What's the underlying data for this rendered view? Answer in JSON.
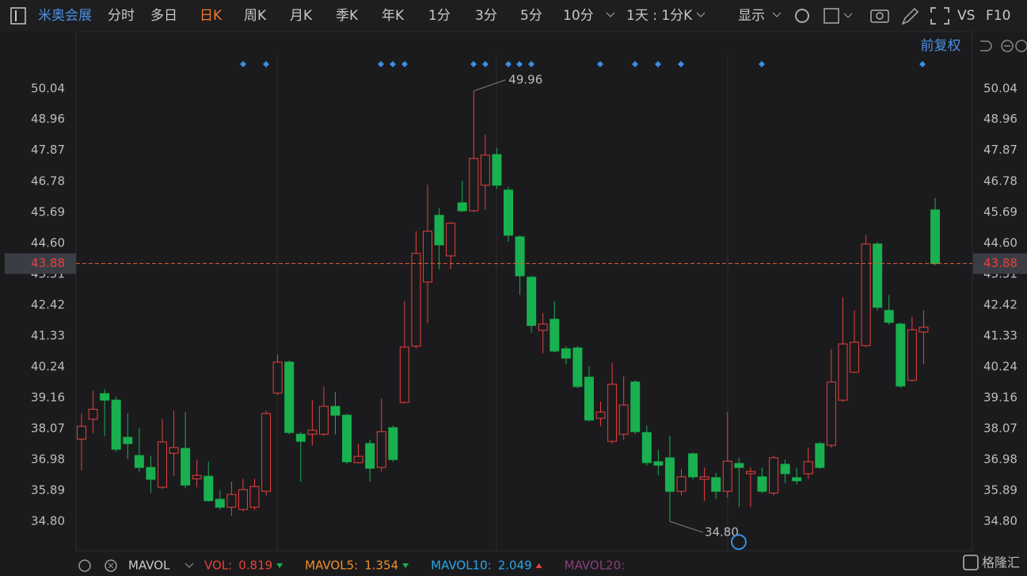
{
  "toolbar": {
    "stock": "米奥会展",
    "periods": [
      "分时",
      "多日",
      "日K",
      "周K",
      "月K",
      "季K",
      "年K",
      "1分",
      "3分",
      "5分",
      "10分"
    ],
    "active": "日K",
    "range": "1天 : 1分K",
    "display": "显示",
    "vs": "VS",
    "f10": "F10"
  },
  "chart_data": {
    "type": "candlestick",
    "adjust": "前复权",
    "ylim": [
      33.77,
      51.21
    ],
    "yticks": [
      {
        "value": 50.04,
        "label": "50.04"
      },
      {
        "value": 48.96,
        "label": "48.96"
      },
      {
        "value": 47.87,
        "label": "47.87"
      },
      {
        "value": 46.78,
        "label": "46.78"
      },
      {
        "value": 45.69,
        "label": "45.69"
      },
      {
        "value": 44.6,
        "label": "44.60"
      },
      {
        "value": 43.51,
        "label": "43.51"
      },
      {
        "value": 42.42,
        "label": "42.42"
      },
      {
        "value": 41.33,
        "label": "41.33"
      },
      {
        "value": 40.24,
        "label": "40.24"
      },
      {
        "value": 39.16,
        "label": "39.16"
      },
      {
        "value": 38.07,
        "label": "38.07"
      },
      {
        "value": 36.98,
        "label": "36.98"
      },
      {
        "value": 35.89,
        "label": "35.89"
      },
      {
        "value": 34.8,
        "label": "34.80"
      }
    ],
    "up_color": "#e8413c",
    "down_color": "#19b04f",
    "open": [
      37.7,
      38.4,
      39.3,
      39.07,
      37.76,
      37.12,
      36.7,
      36.0,
      37.2,
      37.37,
      36.3,
      36.39,
      35.58,
      35.3,
      35.22,
      35.3,
      35.86,
      39.32,
      40.41,
      37.87,
      37.87,
      37.87,
      38.85,
      38.54,
      36.87,
      37.54,
      36.7,
      38.1,
      38.99,
      40.97,
      43.23,
      45.58,
      44.15,
      46.02,
      45.74,
      46.64,
      47.72,
      46.47,
      44.82,
      43.4,
      41.53,
      41.92,
      40.88,
      40.91,
      39.88,
      38.43,
      37.62,
      37.87,
      39.71,
      37.93,
      36.9,
      37.04,
      35.86,
      37.18,
      36.28,
      36.34,
      35.86,
      36.84,
      36.48,
      36.37,
      35.8,
      36.81,
      36.34,
      36.48,
      37.54,
      37.48,
      39.07,
      40.05,
      40.99,
      44.57,
      42.23,
      41.75,
      39.77,
      41.47,
      45.77
    ],
    "high": [
      38.6,
      39.4,
      39.45,
      39.2,
      38.6,
      38.1,
      37.12,
      38.4,
      38.7,
      38.65,
      36.98,
      36.9,
      35.9,
      36.2,
      36.3,
      36.3,
      38.7,
      40.68,
      40.47,
      37.95,
      39.07,
      39.55,
      39.35,
      38.6,
      37.54,
      37.68,
      39.13,
      38.18,
      42.56,
      45.02,
      46.66,
      45.85,
      45.35,
      46.8,
      49.96,
      48.42,
      47.95,
      46.58,
      44.88,
      43.45,
      42.14,
      42.56,
      40.97,
      40.97,
      40.27,
      39.02,
      40.38,
      39.91,
      39.77,
      38.18,
      37.32,
      37.82,
      36.64,
      37.23,
      36.7,
      36.5,
      38.65,
      37.04,
      36.7,
      36.7,
      37.12,
      36.98,
      36.7,
      37.4,
      37.6,
      40.88,
      42.7,
      42.23,
      44.88,
      44.65,
      42.78,
      41.81,
      42.0,
      42.23,
      46.19
    ],
    "low": [
      36.6,
      37.9,
      37.8,
      37.25,
      37.0,
      36.55,
      35.8,
      35.94,
      36.4,
      35.98,
      36.0,
      35.5,
      35.22,
      35.0,
      35.16,
      35.2,
      35.72,
      39.26,
      37.87,
      36.2,
      37.48,
      37.81,
      37.87,
      36.84,
      36.84,
      36.2,
      36.56,
      36.9,
      38.96,
      40.89,
      41.78,
      43.68,
      43.68,
      45.69,
      45.69,
      45.77,
      46.52,
      44.65,
      42.78,
      41.44,
      40.72,
      40.75,
      40.33,
      39.49,
      38.32,
      38.15,
      37.54,
      37.68,
      37.87,
      36.76,
      36.42,
      34.8,
      35.72,
      36.28,
      35.53,
      35.58,
      35.64,
      35.3,
      35.3,
      35.8,
      35.72,
      36.14,
      36.09,
      36.3,
      36.65,
      37.4,
      39.02,
      40.02,
      40.94,
      42.23,
      41.72,
      39.49,
      39.71,
      40.33,
      43.82
    ],
    "close": [
      38.15,
      38.75,
      39.07,
      37.34,
      37.54,
      36.7,
      36.28,
      37.6,
      37.4,
      36.08,
      36.42,
      35.53,
      35.3,
      35.75,
      35.92,
      36.03,
      38.6,
      40.41,
      37.93,
      37.62,
      38.01,
      38.85,
      38.54,
      36.9,
      37.09,
      36.67,
      37.96,
      36.98,
      40.94,
      44.24,
      45.02,
      44.54,
      45.3,
      45.74,
      47.58,
      47.7,
      46.64,
      44.88,
      43.45,
      41.7,
      41.75,
      40.8,
      40.55,
      39.55,
      38.37,
      38.65,
      39.63,
      38.9,
      37.96,
      36.87,
      36.78,
      35.86,
      36.37,
      36.37,
      36.37,
      35.86,
      36.92,
      36.7,
      36.56,
      35.86,
      37.04,
      36.48,
      36.23,
      36.9,
      36.7,
      39.71,
      41.05,
      41.11,
      44.57,
      42.34,
      41.81,
      39.57,
      41.55,
      41.64,
      43.88
    ],
    "last_price": 43.88,
    "annotations": [
      {
        "value": 49.96
      },
      {
        "value": 34.8,
        "label": "34.80"
      }
    ]
  },
  "indicator": {
    "name": "MAVOL",
    "items": [
      {
        "label": "VOL:",
        "value": 0.819,
        "color": "#e8413c"
      },
      {
        "label": "MAVOL5:",
        "value": 1.354,
        "color": "#f0902a"
      },
      {
        "label": "MAVOL10:",
        "value": 2.049,
        "color": "#2aa8e8"
      },
      {
        "label": "MAVOL20:",
        "color": "#8a3f7a"
      }
    ]
  },
  "watermark": "格隆汇"
}
